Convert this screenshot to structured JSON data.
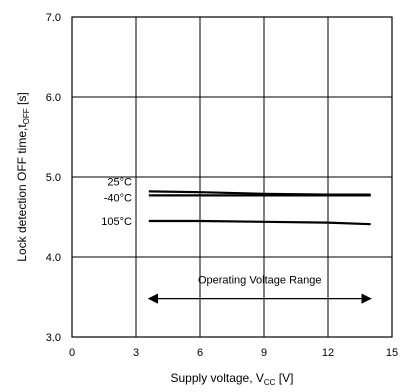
{
  "chart_data": {
    "type": "line",
    "title": "",
    "xlabel": "Supply voltage, V",
    "xlabel_sub": "CC",
    "xlabel_unit": " [V]",
    "ylabel": "Lock detection OFF time,t",
    "ylabel_sub": "OFF",
    "ylabel_unit": " [s]",
    "xlim": [
      0,
      15
    ],
    "ylim": [
      3.0,
      7.0
    ],
    "x_ticks": [
      0,
      3,
      6,
      9,
      12,
      15
    ],
    "x_tick_labels": [
      "0",
      "3",
      "6",
      "9",
      "12",
      "15"
    ],
    "y_ticks": [
      3.0,
      4.0,
      5.0,
      6.0,
      7.0
    ],
    "y_tick_labels": [
      "3.0",
      "4.0",
      "5.0",
      "6.0",
      "7.0"
    ],
    "grid": true,
    "series": [
      {
        "name": "25°C",
        "x": [
          3.6,
          6,
          9,
          12,
          14
        ],
        "y": [
          4.82,
          4.81,
          4.79,
          4.78,
          4.78
        ]
      },
      {
        "name": "-40°C",
        "x": [
          3.6,
          6,
          9,
          12,
          14
        ],
        "y": [
          4.77,
          4.77,
          4.77,
          4.77,
          4.77
        ]
      },
      {
        "name": "105°C",
        "x": [
          3.6,
          6,
          9,
          12,
          14
        ],
        "y": [
          4.45,
          4.45,
          4.44,
          4.43,
          4.41
        ]
      }
    ],
    "annotation": {
      "text": "Operating Voltage Range",
      "x_from": 3.6,
      "x_to": 14,
      "arrow_y": 3.48,
      "text_y": 3.72
    }
  }
}
